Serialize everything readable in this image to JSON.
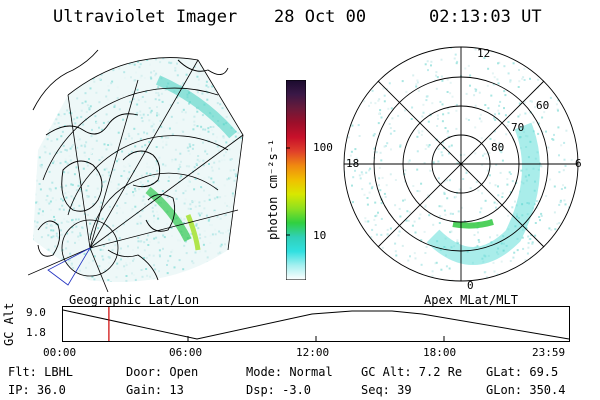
{
  "header": {
    "title": "Ultraviolet Imager",
    "date": "28 Oct 00",
    "time": "02:13:03 UT"
  },
  "colorbar": {
    "label": "photon cm⁻²s⁻¹",
    "ticks": [
      "100",
      "10"
    ],
    "stops": [
      "#1a0a2e",
      "#3a1846",
      "#6a1a3a",
      "#9c0f2a",
      "#c8102a",
      "#e0402a",
      "#f08a10",
      "#f0c000",
      "#d8e800",
      "#8ee020",
      "#30d040",
      "#30d0b8",
      "#30e0e0",
      "#a8f0f0",
      "#ffffff"
    ]
  },
  "geo_panel": {
    "caption": "Geographic Lat/Lon"
  },
  "polar_panel": {
    "caption": "Apex MLat/MLT",
    "mlt_labels": {
      "top": "12",
      "left": "18",
      "right": "6",
      "bottom": "0"
    },
    "lat_labels": [
      "60",
      "70",
      "80"
    ]
  },
  "timeline": {
    "ylabel": "GC Alt",
    "y_ticks": [
      "9.0",
      "1.8"
    ],
    "x_ticks": [
      "00:00",
      "06:00",
      "12:00",
      "18:00",
      "23:59"
    ],
    "marker_time": "02:13",
    "marker_color": "#cc0000"
  },
  "info": {
    "flt": "Flt: LBHL",
    "ip": "IP: 36.0",
    "door": "Door: Open",
    "gain": "Gain: 13",
    "mode": "Mode: Normal",
    "dsp": "Dsp:   -3.0",
    "gcalt": "GC Alt: 7.2 Re",
    "seq": "Seq: 39",
    "glat": "GLat:  69.5",
    "glon": "GLon: 350.4"
  }
}
